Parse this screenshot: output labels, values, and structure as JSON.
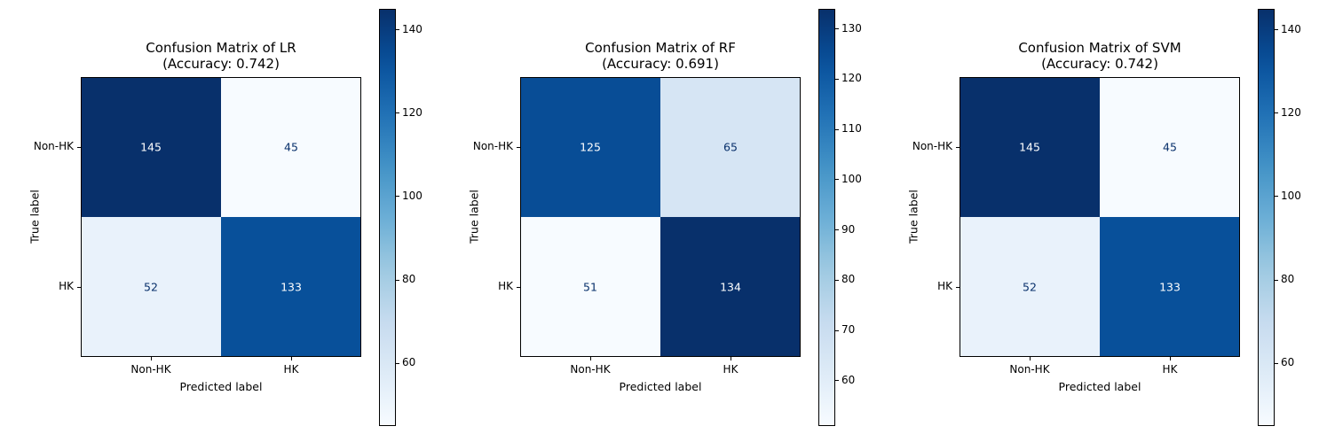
{
  "chart_data": [
    {
      "type": "heatmap",
      "title": "Confusion Matrix of LR",
      "subtitle": "(Accuracy: 0.742)",
      "xlabel": "Predicted label",
      "ylabel": "True label",
      "x_categories": [
        "Non-HK",
        "HK"
      ],
      "y_categories": [
        "Non-HK",
        "HK"
      ],
      "values": [
        [
          145,
          45
        ],
        [
          52,
          133
        ]
      ],
      "colormap": "Blues",
      "colorbar_range": [
        45,
        145
      ],
      "colorbar_ticks": [
        60,
        80,
        100,
        120,
        140
      ]
    },
    {
      "type": "heatmap",
      "title": "Confusion Matrix of RF",
      "subtitle": "(Accuracy: 0.691)",
      "xlabel": "Predicted label",
      "ylabel": "True label",
      "x_categories": [
        "Non-HK",
        "HK"
      ],
      "y_categories": [
        "Non-HK",
        "HK"
      ],
      "values": [
        [
          125,
          65
        ],
        [
          51,
          134
        ]
      ],
      "colormap": "Blues",
      "colorbar_range": [
        51,
        134
      ],
      "colorbar_ticks": [
        60,
        70,
        80,
        90,
        100,
        110,
        120,
        130
      ]
    },
    {
      "type": "heatmap",
      "title": "Confusion Matrix of SVM",
      "subtitle": "(Accuracy: 0.742)",
      "xlabel": "Predicted label",
      "ylabel": "True label",
      "x_categories": [
        "Non-HK",
        "HK"
      ],
      "y_categories": [
        "Non-HK",
        "HK"
      ],
      "values": [
        [
          145,
          45
        ],
        [
          52,
          133
        ]
      ],
      "colormap": "Blues",
      "colorbar_range": [
        45,
        145
      ],
      "colorbar_ticks": [
        60,
        80,
        100,
        120,
        140
      ]
    }
  ]
}
